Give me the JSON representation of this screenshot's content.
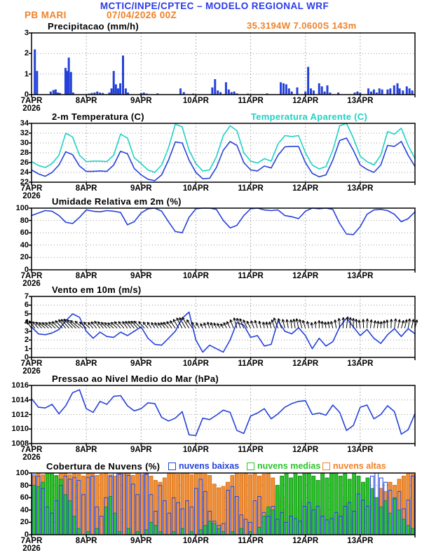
{
  "header": {
    "title": "MCTIC/INPE/CPTEC – MODELO REGIONAL WRF",
    "station": "PB MARI",
    "run": "07/04/2026 00Z",
    "location": "35.3194W 7.0600S 143m"
  },
  "colors": {
    "header_blue": "#2B3BE8",
    "orange_text": "#F08228",
    "line_blue": "#2442DA",
    "cyan": "#1ED2C4",
    "green_fill": "#2CC42C",
    "green_stroke": "#149114",
    "orange_fill": "#F0913A",
    "orange_stroke": "#D96F12",
    "grid_gray": "#999999",
    "frame_black": "#000000"
  },
  "x_axis": {
    "labels": [
      "7APR",
      "8APR",
      "9APR",
      "10APR",
      "11APR",
      "12APR",
      "13APR"
    ],
    "year": "2026",
    "days": 7
  },
  "chart_data": [
    {
      "id": "precip",
      "type": "bar",
      "title": "Precipitacao (mm/h)",
      "ylim": [
        0,
        3
      ],
      "yticks": [
        0,
        1,
        2,
        3
      ],
      "bar_color": "#2442DA",
      "bars": [
        [
          0.06,
          2.2
        ],
        [
          0.1,
          1.15
        ],
        [
          0.35,
          0.15
        ],
        [
          0.4,
          0.22
        ],
        [
          0.44,
          0.25
        ],
        [
          0.48,
          0.1
        ],
        [
          0.52,
          0.08
        ],
        [
          0.62,
          1.3
        ],
        [
          0.65,
          1.15
        ],
        [
          0.68,
          1.8
        ],
        [
          0.72,
          1.1
        ],
        [
          0.76,
          0.1
        ],
        [
          1.05,
          0.05
        ],
        [
          1.1,
          0.08
        ],
        [
          1.15,
          0.1
        ],
        [
          1.2,
          0.15
        ],
        [
          1.25,
          0.1
        ],
        [
          1.3,
          0.08
        ],
        [
          1.42,
          0.1
        ],
        [
          1.46,
          0.3
        ],
        [
          1.5,
          1.15
        ],
        [
          1.54,
          0.5
        ],
        [
          1.58,
          0.3
        ],
        [
          1.62,
          0.55
        ],
        [
          1.67,
          1.9
        ],
        [
          1.72,
          0.3
        ],
        [
          1.76,
          0.1
        ],
        [
          2.0,
          0.08
        ],
        [
          2.05,
          0.1
        ],
        [
          2.1,
          0.05
        ],
        [
          2.3,
          0.06
        ],
        [
          2.72,
          0.3
        ],
        [
          2.78,
          0.12
        ],
        [
          2.95,
          0.05
        ],
        [
          3.3,
          0.35
        ],
        [
          3.35,
          0.75
        ],
        [
          3.4,
          0.2
        ],
        [
          3.45,
          0.12
        ],
        [
          3.55,
          0.6
        ],
        [
          3.6,
          0.25
        ],
        [
          3.65,
          0.12
        ],
        [
          3.7,
          0.15
        ],
        [
          3.75,
          0.06
        ],
        [
          3.95,
          0.05
        ],
        [
          4.3,
          0.06
        ],
        [
          4.55,
          0.6
        ],
        [
          4.6,
          0.55
        ],
        [
          4.65,
          0.5
        ],
        [
          4.7,
          0.3
        ],
        [
          4.75,
          0.15
        ],
        [
          4.85,
          0.35
        ],
        [
          5.0,
          0.15
        ],
        [
          5.05,
          1.35
        ],
        [
          5.1,
          0.3
        ],
        [
          5.15,
          0.2
        ],
        [
          5.25,
          0.55
        ],
        [
          5.3,
          0.4
        ],
        [
          5.35,
          0.15
        ],
        [
          5.4,
          0.45
        ],
        [
          5.45,
          0.1
        ],
        [
          5.6,
          0.1
        ],
        [
          5.9,
          0.1
        ],
        [
          5.95,
          0.15
        ],
        [
          6.0,
          0.1
        ],
        [
          6.15,
          0.3
        ],
        [
          6.2,
          0.15
        ],
        [
          6.25,
          0.25
        ],
        [
          6.3,
          0.1
        ],
        [
          6.35,
          0.3
        ],
        [
          6.4,
          0.25
        ],
        [
          6.5,
          0.25
        ],
        [
          6.55,
          0.3
        ],
        [
          6.62,
          0.45
        ],
        [
          6.68,
          0.55
        ],
        [
          6.72,
          0.3
        ],
        [
          6.78,
          0.2
        ],
        [
          6.85,
          0.4
        ],
        [
          6.9,
          0.3
        ],
        [
          6.95,
          0.2
        ]
      ]
    },
    {
      "id": "temp",
      "type": "line",
      "title": "2-m Temperatura (C)",
      "title_right": "Temperatura Aparente (C)",
      "ylim": [
        22,
        34
      ],
      "yticks": [
        22,
        24,
        26,
        28,
        30,
        32,
        34
      ],
      "series": [
        {
          "name": "2-m Temperatura",
          "color": "#2442DA",
          "values": [
            24.5,
            23.7,
            23.2,
            24.0,
            25.5,
            28.2,
            27.6,
            25.3,
            24.2,
            24.2,
            24.3,
            24.2,
            25.5,
            28.3,
            27.8,
            24.8,
            23.5,
            22.6,
            22.3,
            23.5,
            26.5,
            30.2,
            30.0,
            26.5,
            24.0,
            22.7,
            22.8,
            25.0,
            28.5,
            30.3,
            29.5,
            26.0,
            24.5,
            24.3,
            25.3,
            24.9,
            27.5,
            29.2,
            29.3,
            29.3,
            26.0,
            23.8,
            23.1,
            23.5,
            26.5,
            30.5,
            31.0,
            28.5,
            25.5,
            24.6,
            24.0,
            25.5,
            29.5,
            29.3,
            30.3,
            27.5,
            25.2
          ]
        },
        {
          "name": "Temperatura Aparente",
          "color": "#1ED2C4",
          "values": [
            26.2,
            25.4,
            25.0,
            25.8,
            27.5,
            32.0,
            31.2,
            27.5,
            26.2,
            26.3,
            26.3,
            26.2,
            27.5,
            31.8,
            31.0,
            27.0,
            25.8,
            24.5,
            24.0,
            25.5,
            29.0,
            33.8,
            33.3,
            28.5,
            25.8,
            24.3,
            24.5,
            27.2,
            31.5,
            33.5,
            32.5,
            28.0,
            26.3,
            25.9,
            26.8,
            26.3,
            29.8,
            31.5,
            31.3,
            31.5,
            28.0,
            25.5,
            24.7,
            25.2,
            28.5,
            33.5,
            34.0,
            31.0,
            27.3,
            26.2,
            25.5,
            27.5,
            32.3,
            31.8,
            33.0,
            29.5,
            26.8
          ]
        }
      ]
    },
    {
      "id": "humidity",
      "type": "line",
      "title": "Umidade Relativa em 2m (%)",
      "ylim": [
        0,
        100
      ],
      "yticks": [
        0,
        20,
        40,
        60,
        80,
        100
      ],
      "series": [
        {
          "name": "Umidade Relativa",
          "color": "#2442DA",
          "values": [
            88,
            92,
            96,
            95,
            88,
            77,
            75,
            85,
            97,
            95,
            94,
            96,
            95,
            93,
            73,
            78,
            92,
            99,
            100,
            95,
            78,
            62,
            60,
            85,
            99,
            100,
            100,
            98,
            80,
            68,
            72,
            88,
            99,
            100,
            97,
            96,
            97,
            88,
            86,
            83,
            95,
            100,
            99,
            100,
            98,
            75,
            58,
            57,
            70,
            90,
            97,
            98,
            96,
            90,
            78,
            83,
            94
          ]
        }
      ]
    },
    {
      "id": "wind",
      "type": "line",
      "title": "Vento em 10m (m/s)",
      "ylim": [
        0,
        7
      ],
      "yticks": [
        0,
        1,
        2,
        3,
        4,
        5,
        6,
        7
      ],
      "series": [
        {
          "name": "Vento 10m",
          "color": "#2442DA",
          "values": [
            3.5,
            2.7,
            2.6,
            2.8,
            3.2,
            4.2,
            5.0,
            4.6,
            3.0,
            2.2,
            2.9,
            2.4,
            2.3,
            2.9,
            2.5,
            3.0,
            3.5,
            2.2,
            1.5,
            1.4,
            2.2,
            3.0,
            4.5,
            5.2,
            2.0,
            0.6,
            1.4,
            1.0,
            0.6,
            2.0,
            4.0,
            3.7,
            2.3,
            2.5,
            1.3,
            1.5,
            4.2,
            3.0,
            2.7,
            3.4,
            2.5,
            1.0,
            2.2,
            1.3,
            1.8,
            3.5,
            4.5,
            3.5,
            2.5,
            3.2,
            2.2,
            1.6,
            2.6,
            3.3,
            2.4,
            3.3,
            2.7
          ]
        }
      ],
      "barbs": {
        "base_value": 3.35,
        "color": "#000000",
        "angles_deg": [
          -35,
          -42,
          -48,
          -50,
          -46,
          -40,
          -44,
          -50,
          -47,
          -42,
          -38,
          -44,
          -48,
          -43,
          -36,
          -40,
          -45,
          -38,
          -30,
          -34,
          -40,
          -35,
          -28,
          -32,
          -36,
          -25,
          -18,
          -24,
          -30,
          -26,
          -16,
          -22,
          -28,
          -18,
          -10,
          -16,
          -22,
          -14,
          -6,
          -12,
          -18,
          -8,
          0,
          -8,
          -14,
          -4,
          6,
          0,
          -8,
          2,
          10,
          4,
          -4,
          8,
          16,
          10,
          14
        ]
      }
    },
    {
      "id": "pressure",
      "type": "line",
      "title": "Pressao ao Nivel Medio do Mar (hPa)",
      "ylim": [
        1008,
        1016
      ],
      "yticks": [
        1008,
        1010,
        1012,
        1014,
        1016
      ],
      "series": [
        {
          "name": "Pressao nivel do mar",
          "color": "#2442DA",
          "values": [
            1014.2,
            1013.0,
            1012.9,
            1013.4,
            1012.1,
            1013.2,
            1015.0,
            1015.4,
            1012.8,
            1012.3,
            1013.8,
            1013.4,
            1014.5,
            1014.6,
            1013.2,
            1012.5,
            1012.8,
            1013.6,
            1013.5,
            1011.6,
            1011.1,
            1011.5,
            1012.4,
            1009.2,
            1009.1,
            1011.5,
            1011.3,
            1011.9,
            1012.6,
            1012.3,
            1009.8,
            1009.4,
            1011.8,
            1012.2,
            1012.8,
            1011.4,
            1012.1,
            1013.0,
            1013.5,
            1013.8,
            1013.9,
            1012.0,
            1012.2,
            1011.9,
            1013.3,
            1012.3,
            1009.8,
            1010.5,
            1013.0,
            1013.3,
            1011.4,
            1012.0,
            1013.2,
            1012.4,
            1009.3,
            1009.9,
            1012.1
          ]
        }
      ]
    },
    {
      "id": "clouds",
      "type": "bar",
      "bar_mode": "overlay",
      "title": "Cobertura de Nuvens (%)",
      "ylim": [
        0,
        100
      ],
      "yticks": [
        0,
        20,
        40,
        60,
        80,
        100
      ],
      "legend": [
        {
          "label": "nuvens baixas",
          "color": "#2442DA",
          "style": "outline"
        },
        {
          "label": "nuvens medias",
          "color": "#2CC42C",
          "style": "filled"
        },
        {
          "label": "nuvens altas",
          "color": "#F08228",
          "style": "filled"
        }
      ],
      "series": [
        {
          "name": "nuvens altas",
          "color": "#F0913A",
          "stroke": "#D96F12",
          "values": [
            95,
            100,
            97,
            100,
            98,
            96,
            100,
            99,
            97,
            100,
            98,
            95,
            100,
            100,
            96,
            98,
            100,
            97,
            95,
            100,
            98,
            100,
            96,
            100,
            97,
            99,
            95,
            88,
            85,
            92,
            100,
            100,
            98,
            100,
            100,
            97,
            100,
            100,
            98,
            96,
            82,
            76,
            78,
            85,
            96,
            100,
            98,
            100,
            97,
            100,
            95,
            98,
            100,
            92,
            70,
            60,
            55,
            50,
            45,
            55,
            40,
            35,
            45,
            30,
            40,
            35,
            30,
            25,
            35,
            60,
            30,
            25,
            40,
            45,
            55,
            35,
            60,
            75,
            70,
            85,
            80,
            90,
            95,
            100,
            98
          ]
        },
        {
          "name": "nuvens medias",
          "color": "#2CC42C",
          "stroke": "#149114",
          "values": [
            80,
            78,
            85,
            100,
            100,
            95,
            90,
            65,
            55,
            30,
            10,
            0,
            5,
            0,
            10,
            0,
            45,
            62,
            35,
            5,
            0,
            10,
            0,
            5,
            0,
            8,
            20,
            15,
            5,
            0,
            0,
            5,
            0,
            10,
            0,
            5,
            0,
            8,
            15,
            22,
            18,
            10,
            5,
            0,
            5,
            0,
            10,
            0,
            5,
            0,
            12,
            30,
            45,
            40,
            80,
            95,
            100,
            92,
            100,
            95,
            100,
            100,
            95,
            88,
            100,
            92,
            100,
            100,
            95,
            100,
            90,
            100,
            95,
            85,
            92,
            75,
            60,
            45,
            55,
            35,
            60,
            40,
            25,
            15,
            10
          ]
        },
        {
          "name": "nuvens baixas",
          "color": "none",
          "stroke": "#2442DA",
          "values": [
            97,
            95,
            75,
            45,
            35,
            55,
            80,
            95,
            90,
            93,
            88,
            65,
            93,
            95,
            45,
            30,
            60,
            95,
            100,
            98,
            100,
            96,
            82,
            65,
            100,
            98,
            65,
            38,
            80,
            55,
            35,
            60,
            52,
            42,
            55,
            45,
            75,
            90,
            70,
            38,
            22,
            15,
            18,
            72,
            78,
            62,
            32,
            25,
            20,
            55,
            62,
            36,
            30,
            46,
            25,
            36,
            20,
            30,
            26,
            22,
            46,
            52,
            40,
            46,
            30,
            24,
            26,
            36,
            30,
            46,
            52,
            38,
            66,
            56,
            46,
            95,
            100,
            92,
            85,
            72,
            58,
            70,
            42,
            56,
            95
          ]
        }
      ]
    }
  ]
}
